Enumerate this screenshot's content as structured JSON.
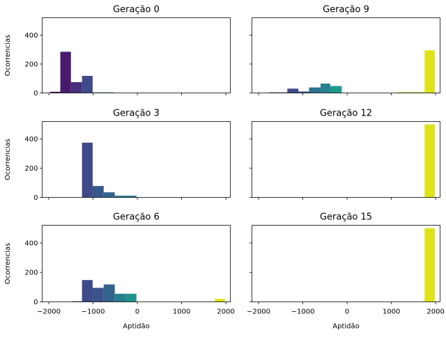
{
  "chart_data": [
    {
      "type": "bar",
      "title": "Geração 0",
      "xlabel": "",
      "ylabel": "Ocorrencias",
      "xlim": [
        -2150,
        2100
      ],
      "ylim": [
        0,
        520
      ],
      "x_ticks": [
        "−2000",
        "−1000",
        "0",
        "1000",
        "2000"
      ],
      "y_ticks": [
        "0",
        "200",
        "400"
      ],
      "show_x_tick_labels": false,
      "show_y_tick_labels": true,
      "bins": [
        {
          "x0": -1970,
          "x1": -1740,
          "value": 8,
          "color": "#440154"
        },
        {
          "x0": -1740,
          "x1": -1500,
          "value": 285,
          "color": "#481a6c"
        },
        {
          "x0": -1500,
          "x1": -1250,
          "value": 75,
          "color": "#472f7d"
        },
        {
          "x0": -1250,
          "x1": -1010,
          "value": 118,
          "color": "#3e4a89"
        },
        {
          "x0": -1010,
          "x1": -520,
          "value": 4,
          "color": "#2d718e"
        }
      ]
    },
    {
      "type": "bar",
      "title": "Geração 9",
      "xlabel": "",
      "ylabel": "",
      "xlim": [
        -2150,
        2100
      ],
      "ylim": [
        0,
        520
      ],
      "x_ticks": [
        "−2000",
        "−1000",
        "0",
        "1000",
        "2000"
      ],
      "y_ticks": [
        "0",
        "200",
        "400"
      ],
      "show_x_tick_labels": false,
      "show_y_tick_labels": false,
      "bins": [
        {
          "x0": -1750,
          "x1": -1350,
          "value": 4,
          "color": "#443a83"
        },
        {
          "x0": -1350,
          "x1": -1100,
          "value": 30,
          "color": "#3f4889"
        },
        {
          "x0": -1100,
          "x1": -860,
          "value": 10,
          "color": "#3b518b"
        },
        {
          "x0": -860,
          "x1": -600,
          "value": 38,
          "color": "#2c728e"
        },
        {
          "x0": -600,
          "x1": -380,
          "value": 65,
          "color": "#27808e"
        },
        {
          "x0": -380,
          "x1": -120,
          "value": 48,
          "color": "#1f9a8a"
        },
        {
          "x0": 1150,
          "x1": 1750,
          "value": 6,
          "color": "#b5de2b"
        },
        {
          "x0": 1750,
          "x1": 1980,
          "value": 295,
          "color": "#dde318"
        }
      ]
    },
    {
      "type": "bar",
      "title": "Geração 3",
      "xlabel": "",
      "ylabel": "Ocorrencias",
      "xlim": [
        -2150,
        2100
      ],
      "ylim": [
        0,
        520
      ],
      "x_ticks": [
        "−2000",
        "−1000",
        "0",
        "1000",
        "2000"
      ],
      "y_ticks": [
        "0",
        "200",
        "400"
      ],
      "show_x_tick_labels": false,
      "show_y_tick_labels": true,
      "bins": [
        {
          "x0": -1250,
          "x1": -1010,
          "value": 375,
          "color": "#3e4a89"
        },
        {
          "x0": -1010,
          "x1": -760,
          "value": 78,
          "color": "#38588c"
        },
        {
          "x0": -760,
          "x1": -510,
          "value": 35,
          "color": "#31668e"
        },
        {
          "x0": -510,
          "x1": -20,
          "value": 12,
          "color": "#2a788e"
        }
      ]
    },
    {
      "type": "bar",
      "title": "Geração 12",
      "xlabel": "",
      "ylabel": "",
      "xlim": [
        -2150,
        2100
      ],
      "ylim": [
        0,
        520
      ],
      "x_ticks": [
        "−2000",
        "−1000",
        "0",
        "1000",
        "2000"
      ],
      "y_ticks": [
        "0",
        "200",
        "400"
      ],
      "show_x_tick_labels": false,
      "show_y_tick_labels": false,
      "bins": [
        {
          "x0": 1750,
          "x1": 1980,
          "value": 500,
          "color": "#dde318"
        }
      ]
    },
    {
      "type": "bar",
      "title": "Geração 6",
      "xlabel": "Aptidão",
      "ylabel": "Ocorrencias",
      "xlim": [
        -2150,
        2100
      ],
      "ylim": [
        0,
        520
      ],
      "x_ticks": [
        "−2000",
        "−1000",
        "0",
        "1000",
        "2000"
      ],
      "y_ticks": [
        "0",
        "200",
        "400"
      ],
      "show_x_tick_labels": true,
      "show_y_tick_labels": true,
      "bins": [
        {
          "x0": -1480,
          "x1": -1250,
          "value": 4,
          "color": "#453882"
        },
        {
          "x0": -1250,
          "x1": -1010,
          "value": 148,
          "color": "#3e4a89"
        },
        {
          "x0": -1010,
          "x1": -760,
          "value": 95,
          "color": "#3b528b"
        },
        {
          "x0": -760,
          "x1": -510,
          "value": 118,
          "color": "#33638d"
        },
        {
          "x0": -510,
          "x1": -260,
          "value": 55,
          "color": "#27808e"
        },
        {
          "x0": -260,
          "x1": -20,
          "value": 55,
          "color": "#21918c"
        },
        {
          "x0": 1750,
          "x1": 1980,
          "value": 20,
          "color": "#dde318"
        }
      ]
    },
    {
      "type": "bar",
      "title": "Geração 15",
      "xlabel": "Aptidão",
      "ylabel": "",
      "xlim": [
        -2150,
        2100
      ],
      "ylim": [
        0,
        520
      ],
      "x_ticks": [
        "−2000",
        "−1000",
        "0",
        "1000",
        "2000"
      ],
      "y_ticks": [
        "0",
        "200",
        "400"
      ],
      "show_x_tick_labels": true,
      "show_y_tick_labels": false,
      "bins": [
        {
          "x0": 1750,
          "x1": 1980,
          "value": 500,
          "color": "#dde318"
        }
      ]
    }
  ]
}
